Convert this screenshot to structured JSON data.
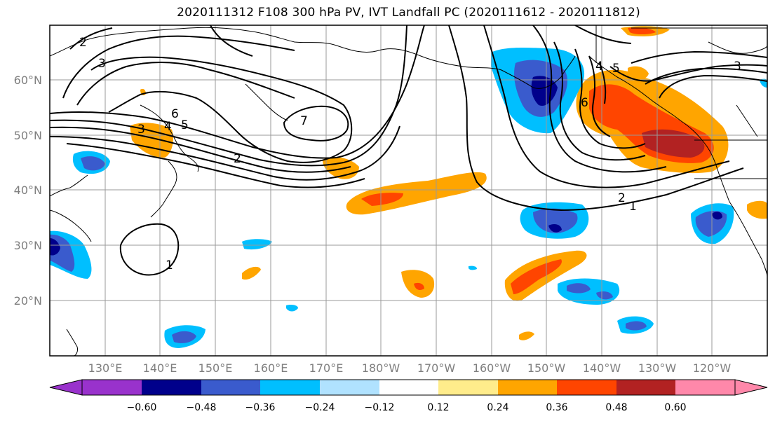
{
  "title": "2020111312 F108 300 hPa PV, IVT Landfall PC (2020111612 - 2020111812)",
  "lat_labels": [
    "60°N",
    "50°N",
    "40°N",
    "30°N",
    "20°N"
  ],
  "lon_labels": [
    "130°E",
    "140°E",
    "150°E",
    "160°E",
    "170°E",
    "180°W",
    "170°W",
    "160°W",
    "150°W",
    "140°W",
    "130°W",
    "120°W"
  ],
  "colorbar": {
    "tick_labels": [
      "−0.60",
      "−0.48",
      "−0.36",
      "−0.24",
      "−0.12",
      "0.12",
      "0.24",
      "0.36",
      "0.48",
      "0.60"
    ],
    "colors": [
      "#9932cc",
      "#00008b",
      "#3a5bcd",
      "#00bfff",
      "#b0e2ff",
      "#ffffff",
      "#ffec8b",
      "#ffa500",
      "#ff4500",
      "#b22222",
      "#ff88aa"
    ]
  },
  "contour_labels": [
    "2",
    "3",
    "7",
    "6",
    "4",
    "5",
    "2",
    "3",
    "1",
    "1",
    "2",
    "4",
    "5",
    "6",
    "3"
  ]
}
